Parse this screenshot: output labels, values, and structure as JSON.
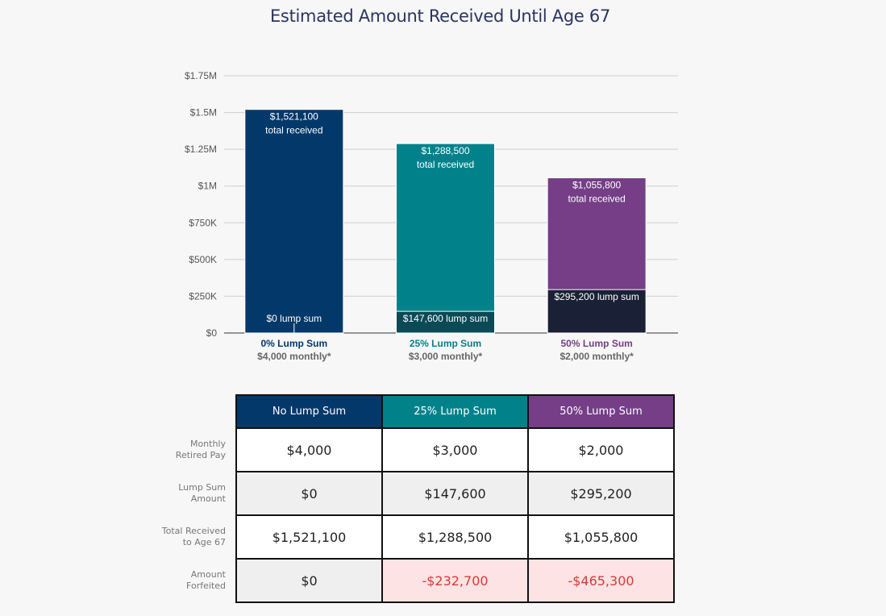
{
  "title": "Estimated Amount Received Until Age 67",
  "colors": {
    "navy": "#02386a",
    "teal": "#01828b",
    "purple": "#753e87",
    "lump_navy": "#02386a",
    "lump_teal": "#0a4a56",
    "lump_purple": "#1a2035",
    "grid": "#cfcfcf",
    "negative_text": "#d43c3c",
    "negative_bg": "#fde3e3"
  },
  "chart_data": {
    "type": "bar",
    "stacked": true,
    "categories": [
      "0% Lump Sum",
      "25% Lump Sum",
      "50% Lump Sum"
    ],
    "category_sublabels": [
      "$4,000 monthly*",
      "$3,000 monthly*",
      "$2,000 monthly*"
    ],
    "totals": [
      1521100,
      1288500,
      1055800
    ],
    "lump_sums": [
      0,
      147600,
      295200
    ],
    "total_labels": [
      "$1,521,100",
      "$1,288,500",
      "$1,055,800"
    ],
    "total_label_suffix": "total received",
    "lump_labels": [
      "$0 lump sum",
      "$147,600 lump sum",
      "$295,200 lump sum"
    ],
    "ylim": [
      0,
      1750000
    ],
    "yticks": [
      0,
      250000,
      500000,
      750000,
      1000000,
      1250000,
      1500000,
      1750000
    ],
    "ytick_labels": [
      "$0",
      "$250K",
      "$500K",
      "$750K",
      "$1M",
      "$1.25M",
      "$1.5M",
      "$1.75M"
    ],
    "grid": true
  },
  "table": {
    "columns": [
      "No Lump Sum",
      "25% Lump Sum",
      "50% Lump Sum"
    ],
    "rows": [
      {
        "label_line1": "Monthly",
        "label_line2": "Retired Pay",
        "values": [
          "$4,000",
          "$3,000",
          "$2,000"
        ]
      },
      {
        "label_line1": "Lump Sum",
        "label_line2": "Amount",
        "values": [
          "$0",
          "$147,600",
          "$295,200"
        ]
      },
      {
        "label_line1": "Total Received",
        "label_line2": "to Age 67",
        "values": [
          "$1,521,100",
          "$1,288,500",
          "$1,055,800"
        ]
      },
      {
        "label_line1": "Amount",
        "label_line2": "Forfeited",
        "values": [
          "$0",
          "-$232,700",
          "-$465,300"
        ]
      }
    ]
  }
}
